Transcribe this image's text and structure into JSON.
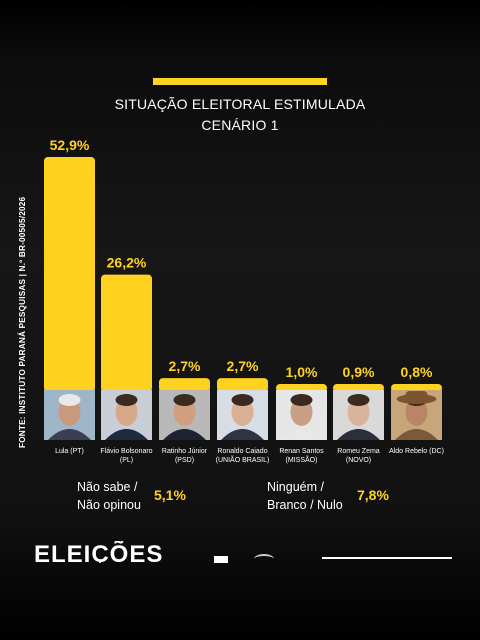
{
  "title_line1": "SITUAÇÃO ELEITORAL ESTIMULADA",
  "title_line2": "CENÁRIO 1",
  "source_text": "FONTE: INSTITUTO PARANÁ PESQUISAS | N.º BR-00505/2026",
  "colors": {
    "accent": "#ffd21f",
    "background": "#111111",
    "text": "#ffffff"
  },
  "chart_data": {
    "type": "bar",
    "categories": [
      "Lula (PT)",
      "Flávio Bolsonaro (PL)",
      "Ratinho Júnior (PSD)",
      "Ronaldo Caiado (UNIÃO BRASIL)",
      "Renan Santos (MISSÃO)",
      "Romeu Zema (NOVO)",
      "Aldo Rebelo (DC)"
    ],
    "labels_line1": [
      "Lula (PT)",
      "Flávio Bolsonaro",
      "Ratinho Júnior",
      "Ronaldo Caiado",
      "Renan Santos",
      "Romeu Zema",
      "Aldo Rebelo (DC)"
    ],
    "labels_line2": [
      "",
      "(PL)",
      "(PSD)",
      "(UNIÃO BRASIL)",
      "(MISSÃO)",
      "(NOVO)",
      ""
    ],
    "values": [
      52.9,
      26.2,
      2.7,
      2.7,
      1.0,
      0.9,
      0.8
    ],
    "value_labels": [
      "52,9%",
      "26,2%",
      "2,7%",
      "2,7%",
      "1,0%",
      "0,9%",
      "0,8%"
    ],
    "title": "SITUAÇÃO ELEITORAL ESTIMULADA - CENÁRIO 1",
    "ylim": [
      0,
      52.9
    ],
    "grid": false,
    "bar_color": "#ffd21f"
  },
  "extra_results": [
    {
      "label_line1": "Não sabe /",
      "label_line2": "Não opinou",
      "value": "5,1%"
    },
    {
      "label_line1": "Ninguém /",
      "label_line2": "Branco / Nulo",
      "value": "7,8%"
    }
  ],
  "footer": {
    "brand": "ELEIÇÕES"
  }
}
